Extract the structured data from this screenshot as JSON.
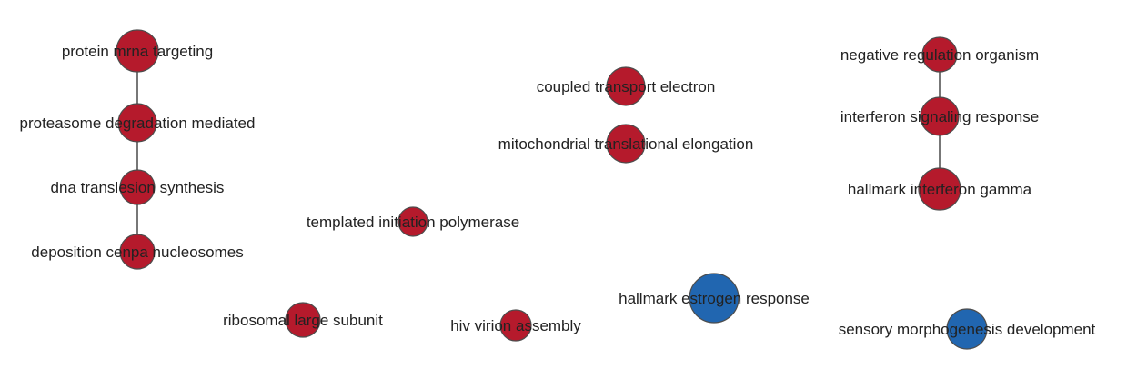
{
  "colors": {
    "up": "#b51a2c",
    "down": "#2166b0",
    "edge": "#555555",
    "label": "#222222"
  },
  "nodes": [
    {
      "id": "n1",
      "label": "protein mrna targeting",
      "color": "up"
    },
    {
      "id": "n2",
      "label": "proteasome degradation mediated",
      "color": "up"
    },
    {
      "id": "n3",
      "label": "dna translesion synthesis",
      "color": "up"
    },
    {
      "id": "n4",
      "label": "deposition cenpa nucleosomes",
      "color": "up"
    },
    {
      "id": "n5",
      "label": "templated initiation polymerase",
      "color": "up"
    },
    {
      "id": "n6",
      "label": "coupled transport electron",
      "color": "up"
    },
    {
      "id": "n7",
      "label": "mitochondrial translational elongation",
      "color": "up"
    },
    {
      "id": "n8",
      "label": "negative regulation organism",
      "color": "up"
    },
    {
      "id": "n9",
      "label": "interferon signaling response",
      "color": "up"
    },
    {
      "id": "n10",
      "label": "hallmark interferon gamma",
      "color": "up"
    },
    {
      "id": "n11",
      "label": "ribosomal large subunit",
      "color": "up"
    },
    {
      "id": "n12",
      "label": "hiv virion assembly",
      "color": "up"
    },
    {
      "id": "n13",
      "label": "hallmark estrogen response",
      "color": "down"
    },
    {
      "id": "n14",
      "label": "sensory morphogenesis development",
      "color": "down"
    }
  ],
  "edges": [
    [
      "n1",
      "n2"
    ],
    [
      "n2",
      "n3"
    ],
    [
      "n3",
      "n4"
    ],
    [
      "n8",
      "n9"
    ],
    [
      "n9",
      "n10"
    ]
  ]
}
